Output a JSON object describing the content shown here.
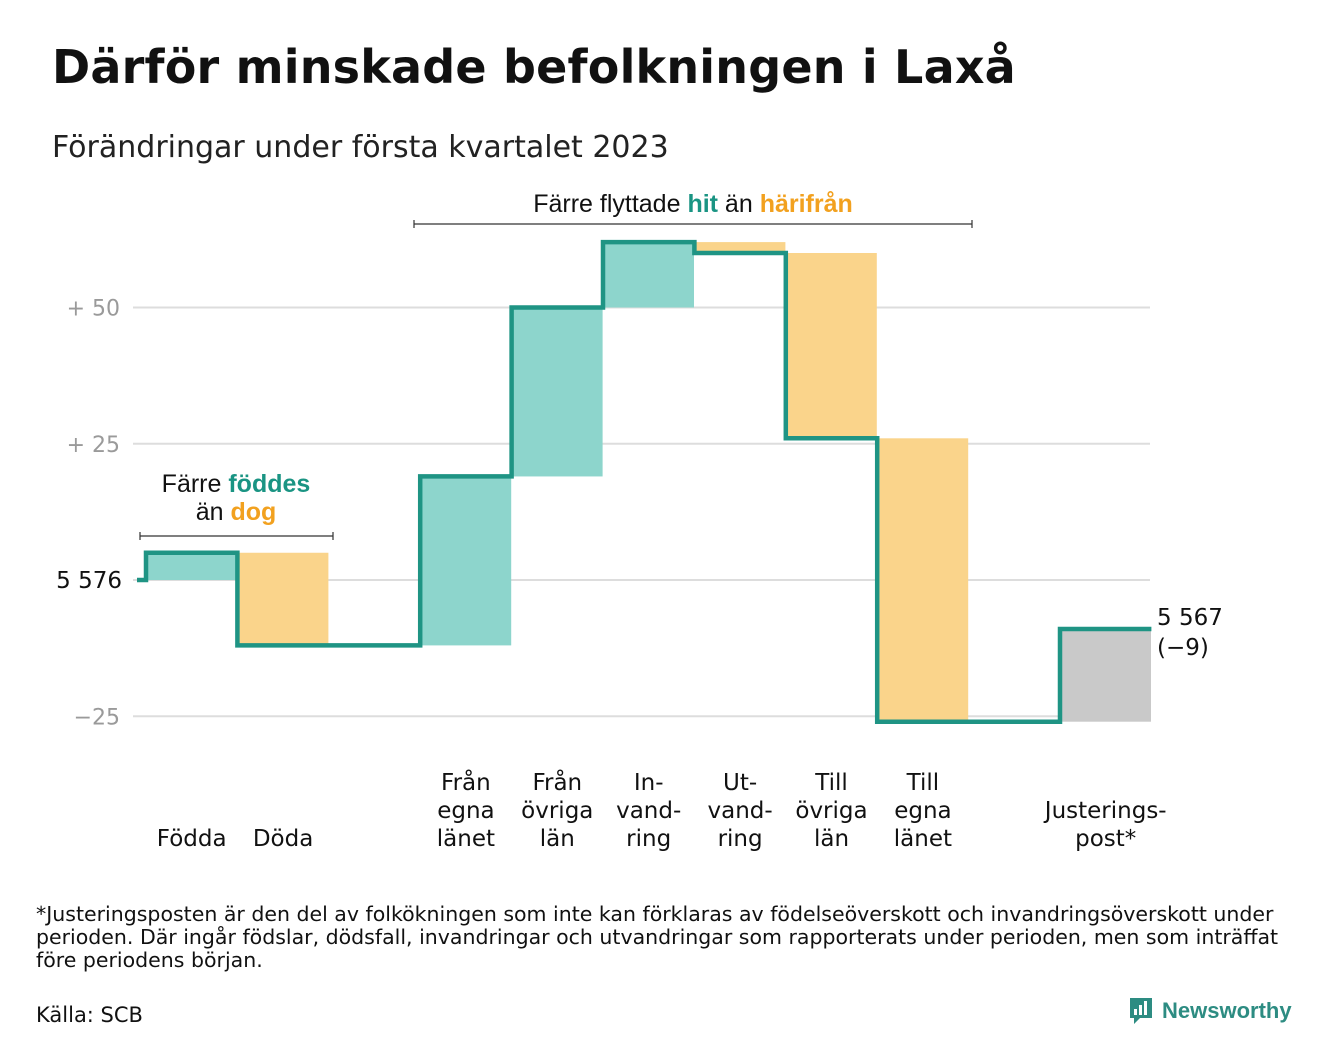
{
  "title": "Därför minskade befolkningen i Laxå",
  "subtitle": "Förändringar under första kvartalet 2023",
  "annotations": {
    "birth": {
      "line1_pre": "Färre ",
      "line1_hl": "föddes",
      "line2_pre": "än ",
      "line2_hl": "dog"
    },
    "migration": {
      "pre": "Färre flyttade ",
      "hl1": "hit",
      "mid": " än ",
      "hl2": "härifrån"
    }
  },
  "chart_data": {
    "type": "waterfall",
    "start_value": 5576,
    "start_label": "5 576",
    "end_value": 5567,
    "end_label": "5 567",
    "change_label": "(−9)",
    "y_ticks": [
      {
        "offset": 50,
        "label": "+ 50"
      },
      {
        "offset": 25,
        "label": "+ 25"
      },
      {
        "offset": 0,
        "label": ""
      },
      {
        "offset": -25,
        "label": "−25"
      }
    ],
    "steps": [
      {
        "category": [
          "Födda"
        ],
        "change": 5,
        "kind": "in"
      },
      {
        "category": [
          "Döda"
        ],
        "change": -17,
        "kind": "out"
      },
      {
        "category": [],
        "change": 0,
        "kind": "gap"
      },
      {
        "category": [
          "Från",
          "egna",
          "länet"
        ],
        "change": 31,
        "kind": "in"
      },
      {
        "category": [
          "Från",
          "övriga",
          "län"
        ],
        "change": 31,
        "kind": "in"
      },
      {
        "category": [
          "In-",
          "vand-",
          "ring"
        ],
        "change": 12,
        "kind": "in"
      },
      {
        "category": [
          "Ut-",
          "vand-",
          "ring"
        ],
        "change": -2,
        "kind": "out"
      },
      {
        "category": [
          "Till",
          "övriga",
          "län"
        ],
        "change": -34,
        "kind": "out"
      },
      {
        "category": [
          "Till",
          "egna",
          "länet"
        ],
        "change": -52,
        "kind": "out"
      },
      {
        "category": [],
        "change": 0,
        "kind": "gap"
      },
      {
        "category": [
          "Justerings-",
          "post*"
        ],
        "change": 17,
        "kind": "adjust"
      }
    ],
    "colors": {
      "in": "#8dd5cc",
      "out": "#fad48b",
      "adjust": "#c9c9c9",
      "line": "#1f9484",
      "grid": "#dddddd"
    }
  },
  "footnote": "*Justeringsposten är den del av folkökningen som inte kan förklaras av födelseöverskott och invandringsöverskott under perioden. Där ingår födslar, dödsfall, invandringar och utvandringar som rapporterats under perioden, men som inträffat före periodens början.",
  "source": "Källa: SCB",
  "brand": "Newsworthy"
}
